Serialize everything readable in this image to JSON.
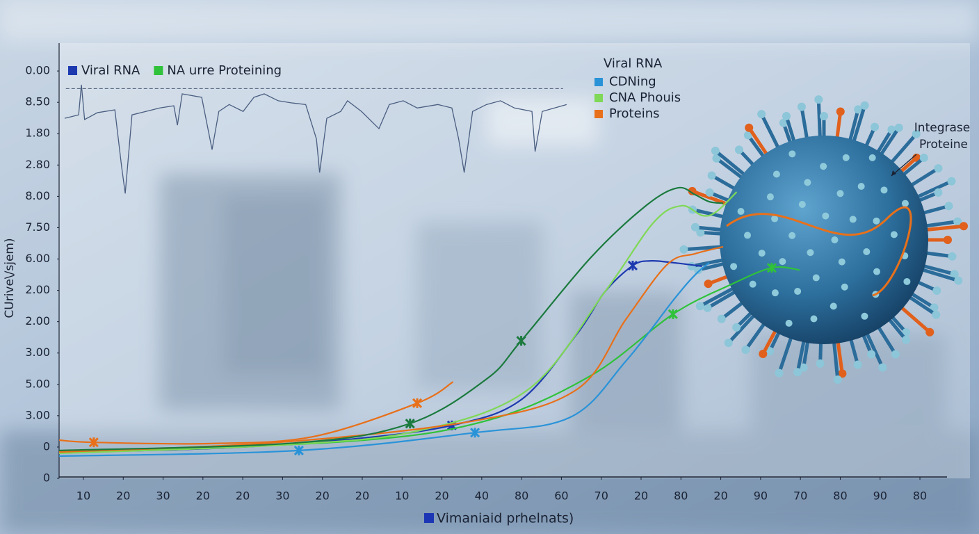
{
  "chart_data": {
    "type": "line",
    "y_axis_label": "CUrive\\/sjem)",
    "x_axis_label": "Vimaniaid prhelnats)",
    "x_axis_label_color": "#1b35b5",
    "legend_title": "Viral RNA",
    "annotation": [
      "Integrase",
      "Proteine"
    ],
    "xlim": [
      -0.61,
      21.68
    ],
    "ylim": [
      0,
      13.89
    ],
    "xticks": [
      {
        "value": 0,
        "label": "10"
      },
      {
        "value": 1,
        "label": "20"
      },
      {
        "value": 2,
        "label": "30"
      },
      {
        "value": 3,
        "label": "20"
      },
      {
        "value": 4,
        "label": "20"
      },
      {
        "value": 5,
        "label": "30"
      },
      {
        "value": 6,
        "label": "20"
      },
      {
        "value": 7,
        "label": "20"
      },
      {
        "value": 8,
        "label": "10"
      },
      {
        "value": 9,
        "label": "20"
      },
      {
        "value": 10,
        "label": "40"
      },
      {
        "value": 11,
        "label": "80"
      },
      {
        "value": 12,
        "label": "60"
      },
      {
        "value": 13,
        "label": "70"
      },
      {
        "value": 14,
        "label": "20"
      },
      {
        "value": 15,
        "label": "80"
      },
      {
        "value": 16,
        "label": "20"
      },
      {
        "value": 17,
        "label": "90"
      },
      {
        "value": 18,
        "label": "70"
      },
      {
        "value": 19,
        "label": "80"
      },
      {
        "value": 20,
        "label": "90"
      },
      {
        "value": 21,
        "label": "80"
      }
    ],
    "yticks": [
      0,
      {
        "value": 1,
        "label": "0"
      },
      {
        "value": 2,
        "label": "3.00"
      },
      {
        "value": 3,
        "label": "5.00"
      },
      {
        "value": 4,
        "label": "3.00"
      },
      {
        "value": 5,
        "label": "2.00"
      },
      {
        "value": 6,
        "label": "2.00"
      },
      {
        "value": 7,
        "label": "6.00"
      },
      {
        "value": 8,
        "label": "7.50"
      },
      {
        "value": 9,
        "label": "8.00"
      },
      {
        "value": 10,
        "label": "2.80"
      },
      {
        "value": 11,
        "label": "1.80"
      },
      {
        "value": 12,
        "label": "8.50"
      },
      {
        "value": 13,
        "label": "0.00"
      }
    ],
    "reference_line": {
      "y": 12.44,
      "x": [
        -0.44,
        12.04
      ],
      "color": "#4a5a74"
    },
    "series": [
      {
        "name": "Viral RNA",
        "legend": "left",
        "color": "#1d39b0",
        "smooth": true,
        "markers": [
          3,
          7
        ],
        "x": [
          -0.61,
          3.14,
          6.63,
          9.25,
          10.99,
          12.39,
          13.09,
          13.79,
          14.22,
          14.83,
          15.53
        ],
        "values": [
          0.84,
          0.95,
          1.24,
          1.69,
          2.51,
          4.61,
          5.95,
          6.79,
          6.94,
          6.88,
          6.77
        ]
      },
      {
        "name": "NA urre Proteining",
        "legend": "left",
        "color": "#2fc23a",
        "smooth": true,
        "markers": [
          4,
          6
        ],
        "x": [
          -0.61,
          6.63,
          10.12,
          12.74,
          14.8,
          16.23,
          17.28,
          17.98
        ],
        "values": [
          0.84,
          1.18,
          1.84,
          3.28,
          5.24,
          6.17,
          6.72,
          6.65
        ]
      },
      {
        "name": "CDNing",
        "legend": "right",
        "color": "#2a93d8",
        "smooth": true,
        "markers": [
          1,
          2
        ],
        "x": [
          -0.61,
          5.41,
          9.83,
          12.22,
          13.61,
          14.83,
          15.36,
          15.71
        ],
        "values": [
          0.71,
          0.89,
          1.46,
          1.95,
          3.73,
          5.72,
          6.5,
          6.88
        ]
      },
      {
        "name": "CNA Phouis",
        "legend": "right",
        "color": "#7fd857",
        "smooth": true,
        "markers": [],
        "x": [
          -0.61,
          4.89,
          8.38,
          11.17,
          13.09,
          14.31,
          15.01,
          15.53,
          15.88,
          16.4
        ],
        "values": [
          0.8,
          1.06,
          1.51,
          2.84,
          5.95,
          8.16,
          8.7,
          8.39,
          8.5,
          9.14
        ]
      },
      {
        "name": "Proteins",
        "legend": "right",
        "color": "#e8701a",
        "smooth": true,
        "markers": [],
        "x": [
          -0.61,
          4.89,
          9.83,
          12.39,
          13.61,
          14.66,
          15.36,
          16.06
        ],
        "values": [
          0.84,
          1.15,
          1.84,
          2.84,
          5.06,
          6.83,
          7.17,
          7.39
        ]
      },
      {
        "color": "#1b7a3e",
        "smooth": true,
        "markers": [
          2,
          4
        ],
        "x": [
          -0.61,
          5.32,
          8.2,
          10.12,
          10.99,
          12.74,
          14.14,
          14.92,
          15.36,
          15.71,
          16.06
        ],
        "values": [
          0.89,
          1.13,
          1.75,
          3.17,
          4.39,
          7.05,
          8.72,
          9.27,
          9.05,
          8.83,
          8.78
        ]
      },
      {
        "color": "#e8701a",
        "smooth": true,
        "markers": [
          1,
          4
        ],
        "x": [
          -0.61,
          0.26,
          3.14,
          5.76,
          8.38,
          9.28
        ],
        "values": [
          1.22,
          1.15,
          1.11,
          1.33,
          2.4,
          3.08
        ]
      },
      {
        "color": "#4a5e80",
        "smooth": false,
        "markers": [],
        "x": [
          -0.47,
          -0.12,
          -0.05,
          0.03,
          0.35,
          0.79,
          0.96,
          1.05,
          1.22,
          1.57,
          1.92,
          2.27,
          2.36,
          2.48,
          2.97,
          3.23,
          3.4,
          3.66,
          4.01,
          4.28,
          4.54,
          4.89,
          5.24,
          5.58,
          5.85,
          5.93,
          6.11,
          6.46,
          6.63,
          6.98,
          7.42,
          7.68,
          8.03,
          8.38,
          8.9,
          9.25,
          9.42,
          9.56,
          9.77,
          10.12,
          10.47,
          10.82,
          11.26,
          11.34,
          11.52,
          12.13
        ],
        "values": [
          11.49,
          11.6,
          12.56,
          11.45,
          11.67,
          11.76,
          9.94,
          9.09,
          11.6,
          11.71,
          11.82,
          11.89,
          11.27,
          12.27,
          12.16,
          10.49,
          11.71,
          11.93,
          11.71,
          12.16,
          12.27,
          12.05,
          11.98,
          11.93,
          10.83,
          9.76,
          11.49,
          11.71,
          12.05,
          11.71,
          11.16,
          11.93,
          12.05,
          11.82,
          11.93,
          11.82,
          10.83,
          9.76,
          11.71,
          11.93,
          12.05,
          11.82,
          11.71,
          10.43,
          11.71,
          11.93
        ]
      }
    ]
  }
}
